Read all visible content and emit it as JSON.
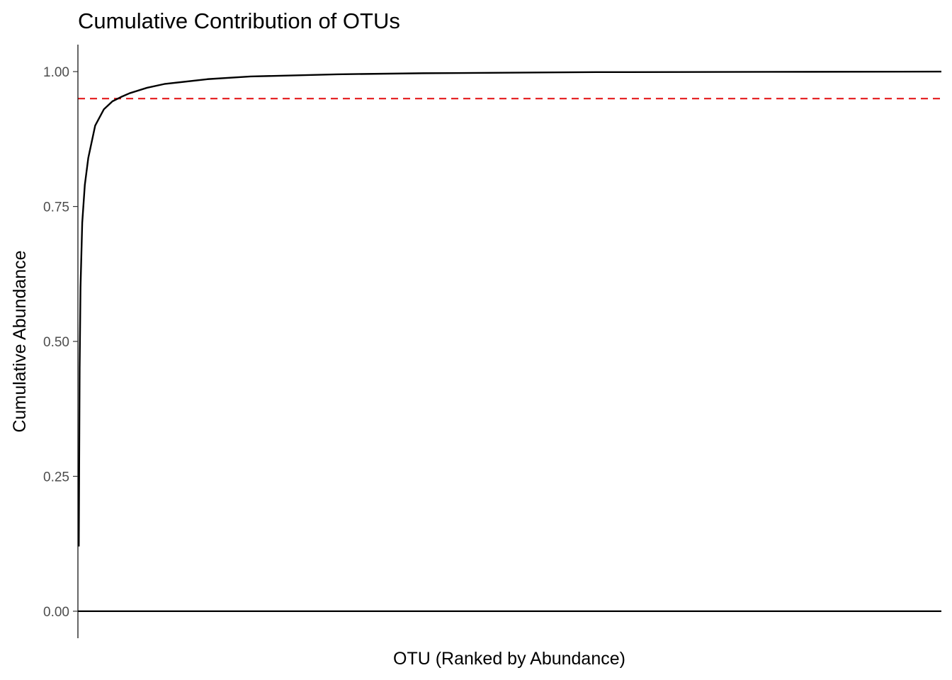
{
  "chart_data": {
    "type": "line",
    "title": "Cumulative Contribution of OTUs",
    "xlabel": "OTU (Ranked by Abundance)",
    "ylabel": "Cumulative Abundance",
    "xlim": [
      0,
      1000
    ],
    "ylim": [
      -0.05,
      1.05
    ],
    "y_ticks": [
      0,
      0.25,
      0.5,
      0.75,
      1.0
    ],
    "y_tick_labels": [
      "0.00",
      "0.25",
      "0.50",
      "0.75",
      "1.00"
    ],
    "x_tick_labels_shown": false,
    "grid": false,
    "series": [
      {
        "color": "#000000",
        "x": [
          1,
          2,
          3,
          5,
          8,
          12,
          20,
          30,
          40,
          50,
          60,
          80,
          100,
          150,
          200,
          300,
          400,
          600,
          800,
          1000
        ],
        "y": [
          0.12,
          0.45,
          0.6,
          0.72,
          0.79,
          0.84,
          0.9,
          0.93,
          0.945,
          0.953,
          0.96,
          0.97,
          0.977,
          0.986,
          0.991,
          0.995,
          0.997,
          0.999,
          0.9995,
          1.0
        ]
      }
    ],
    "hlines": [
      {
        "y": 0.95,
        "color": "#e41a1c",
        "style": "dashed"
      },
      {
        "y": 0.0,
        "color": "#000000",
        "style": "solid"
      }
    ]
  }
}
